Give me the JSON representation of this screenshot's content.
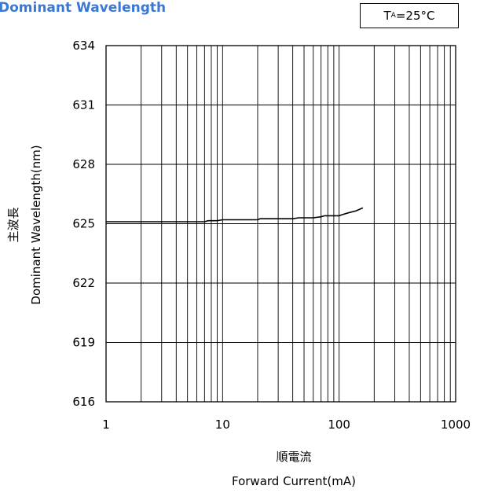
{
  "header": {
    "title": "Dominant Wavelength",
    "condition_main": "T",
    "condition_sub": "A",
    "condition_rest": "=25°C"
  },
  "chart_data": {
    "type": "line",
    "title": "Dominant Wavelength",
    "xlabel_jp": "順電流",
    "xlabel": "Forward Current(mA)",
    "ylabel_jp": "主波長",
    "ylabel": "Dominant Wavelength(nm)",
    "x_scale": "log",
    "xlim": [
      1,
      1000
    ],
    "ylim": [
      616,
      634
    ],
    "x_ticks": [
      "1",
      "10",
      "100",
      "1000"
    ],
    "y_ticks": [
      "616",
      "619",
      "622",
      "625",
      "628",
      "631",
      "634"
    ],
    "grid": true,
    "series": [
      {
        "x": [
          1,
          2,
          5,
          7,
          7.5,
          9,
          10,
          15,
          20,
          21,
          30,
          40,
          45,
          50,
          60,
          70,
          75,
          100,
          105,
          120,
          140,
          160
        ],
        "y": [
          625.1,
          625.1,
          625.1,
          625.1,
          625.15,
          625.15,
          625.2,
          625.2,
          625.2,
          625.25,
          625.25,
          625.25,
          625.3,
          625.3,
          625.3,
          625.35,
          625.4,
          625.4,
          625.45,
          625.55,
          625.65,
          625.8
        ]
      }
    ]
  }
}
